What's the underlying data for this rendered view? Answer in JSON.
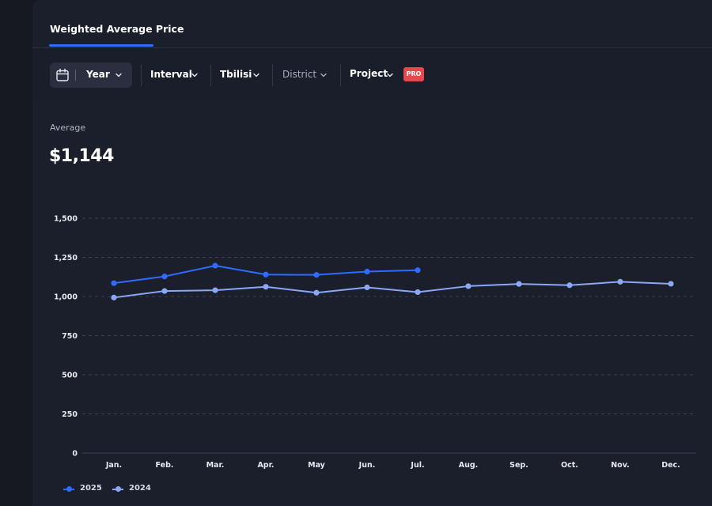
{
  "tabs": [
    {
      "label": "Weighted Average Price",
      "active": true
    }
  ],
  "filters": {
    "period": "Year",
    "interval": "Interval",
    "city": "Tbilisi",
    "district": "District",
    "project": "Project",
    "pro_badge": "PRO"
  },
  "summary": {
    "label": "Average",
    "value": "$1,144"
  },
  "colors": {
    "series_2025": "#2f6bff",
    "series_2024": "#8aa8f5",
    "pro_badge": "#e5484d",
    "accent": "#2f6bff"
  },
  "chart_data": {
    "type": "line",
    "title": "",
    "xlabel": "",
    "ylabel": "",
    "categories": [
      "Jan.",
      "Feb.",
      "Mar.",
      "Apr.",
      "May",
      "Jun.",
      "Jul.",
      "Aug.",
      "Sep.",
      "Oct.",
      "Nov.",
      "Dec."
    ],
    "ylim": [
      0,
      1500
    ],
    "yticks": [
      0,
      250,
      500,
      750,
      1000,
      1250,
      1500
    ],
    "ytick_labels": [
      "0",
      "250",
      "500",
      "750",
      "1,000",
      "1,250",
      "1,500"
    ],
    "grid": true,
    "legend_position": "bottom-left",
    "series": [
      {
        "name": "2025",
        "color": "#2f6bff",
        "values": [
          1085,
          1128,
          1197,
          1140,
          1138,
          1159,
          1168,
          null,
          null,
          null,
          null,
          null
        ]
      },
      {
        "name": "2024",
        "color": "#8aa8f5",
        "values": [
          993,
          1035,
          1040,
          1062,
          1024,
          1058,
          1028,
          1066,
          1080,
          1072,
          1094,
          1081
        ]
      }
    ]
  }
}
